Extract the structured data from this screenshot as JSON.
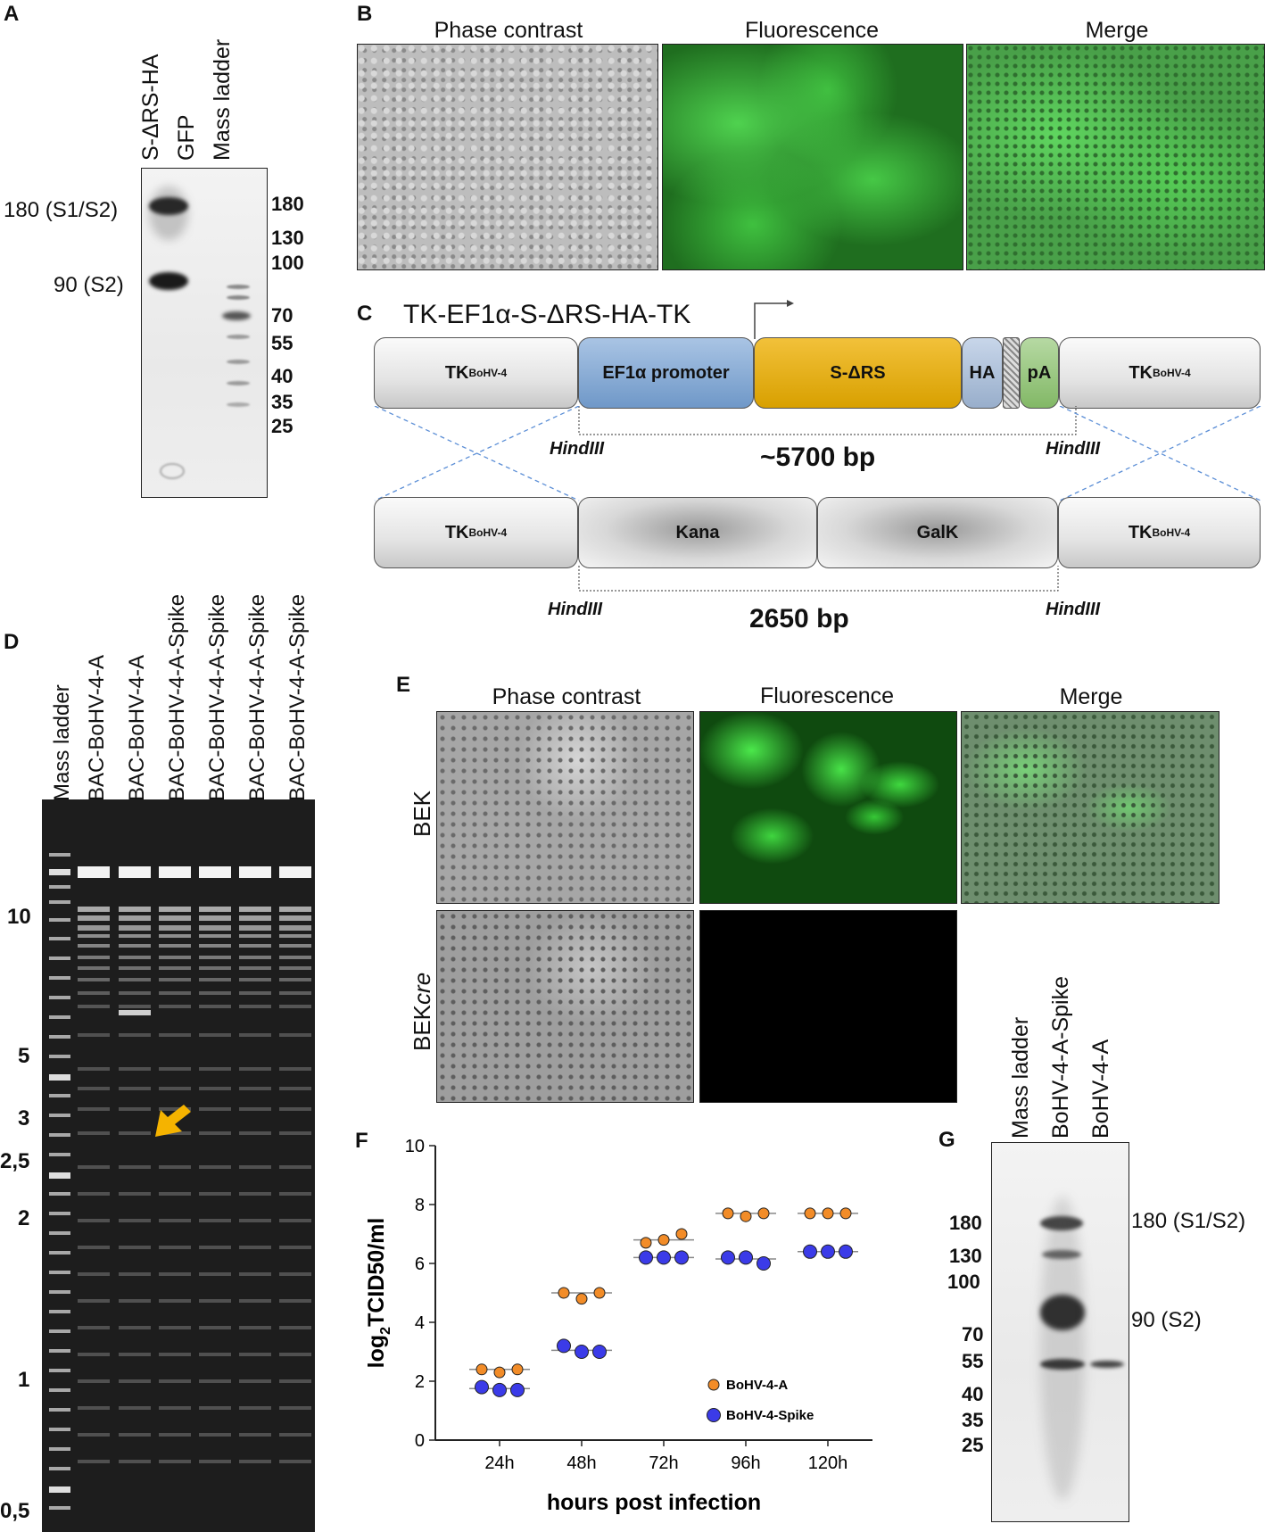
{
  "panels": {
    "A": "A",
    "B": "B",
    "C": "C",
    "D": "D",
    "E": "E",
    "F": "F",
    "G": "G"
  },
  "panelA": {
    "lanes": [
      "S-ΔRS-HA",
      "GFP",
      "Mass ladder"
    ],
    "left_labels": [
      "180 (S1/S2)",
      "90 (S2)"
    ],
    "markers": [
      "180",
      "130",
      "100",
      "70",
      "55",
      "40",
      "35",
      "25"
    ]
  },
  "panelB": {
    "headers": [
      "Phase contrast",
      "Fluorescence",
      "Merge"
    ]
  },
  "panelC": {
    "title": "TK-EF1α-S-ΔRS-HA-TK",
    "top_row": {
      "tk_left": "TK",
      "tk_sup": "BoHV-4",
      "promoter": "EF1α promoter",
      "gene": "S-ΔRS",
      "ha": "HA",
      "pa": "pA",
      "tk_right": "TK"
    },
    "bottom_row": {
      "tk_left": "TK",
      "kana": "Kana",
      "galk": "GalK",
      "tk_right": "TK",
      "tk_sup": "BoHV-4"
    },
    "site": "HindIII",
    "top_size": "~5700 bp",
    "bottom_size": "2650 bp"
  },
  "panelD": {
    "lanes": [
      "Mass ladder",
      "BAC-BoHV-4-A",
      "BAC-BoHV-4-A",
      "BAC-BoHV-4-A-Spike",
      "BAC-BoHV-4-A-Spike",
      "BAC-BoHV-4-A-Spike",
      "BAC-BoHV-4-A-Spike"
    ],
    "markers": [
      "10",
      "5",
      "3",
      "2,5",
      "2",
      "1",
      "0,5"
    ]
  },
  "panelE": {
    "headers": [
      "Phase contrast",
      "Fluorescence",
      "Merge"
    ],
    "rows": {
      "bek": "BEK",
      "bekcre_a": "BEK",
      "bekcre_b": "cre"
    }
  },
  "chart_data": {
    "type": "scatter",
    "xlabel": "hours post infection",
    "ylabel": "log",
    "ylabel_sub": "2",
    "ylabel_rest": "TCID50/ml",
    "categories": [
      "24h",
      "48h",
      "72h",
      "96h",
      "120h"
    ],
    "ylim": [
      0,
      10
    ],
    "yticks": [
      "0",
      "2",
      "4",
      "6",
      "8",
      "10"
    ],
    "legend_position": "bottom-right",
    "series": [
      {
        "name": "BoHV-4-A",
        "color": "#F28C28",
        "values": [
          [
            2.4,
            2.3,
            2.4
          ],
          [
            5.0,
            4.8,
            5.0
          ],
          [
            6.7,
            6.8,
            7.0
          ],
          [
            7.7,
            7.6,
            7.7
          ],
          [
            7.7,
            7.7,
            7.7
          ]
        ],
        "means": [
          2.4,
          5.0,
          6.8,
          7.7,
          7.7
        ]
      },
      {
        "name": "BoHV-4-Spike",
        "color": "#3B3BE8",
        "values": [
          [
            1.8,
            1.7,
            1.7
          ],
          [
            3.2,
            3.0,
            3.0
          ],
          [
            6.2,
            6.2,
            6.2
          ],
          [
            6.2,
            6.2,
            6.0
          ],
          [
            6.4,
            6.4,
            6.4
          ]
        ],
        "means": [
          1.75,
          3.05,
          6.2,
          6.15,
          6.4
        ]
      }
    ]
  },
  "panelG": {
    "lanes": [
      "Mass ladder",
      "BoHV-4-A-Spike",
      "BoHV-4-A"
    ],
    "markers": [
      "180",
      "130",
      "100",
      "70",
      "55",
      "40",
      "35",
      "25"
    ],
    "right_labels": [
      "180 (S1/S2)",
      "90 (S2)"
    ]
  }
}
